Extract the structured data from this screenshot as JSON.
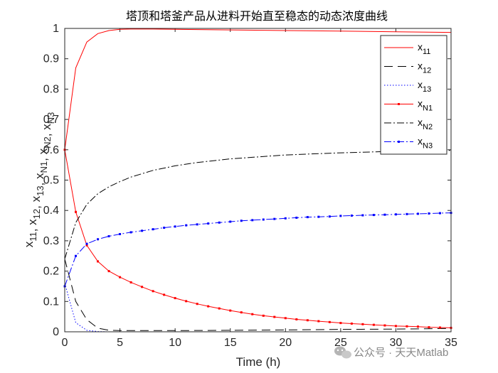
{
  "chart_data": {
    "type": "line",
    "title": "塔顶和塔釜产品从进料开始直至稳态的动态浓度曲线",
    "xlabel": "Time (h)",
    "ylabel": "x11, x12, x13, xN1, xN2, xN3",
    "xlim": [
      0,
      35
    ],
    "ylim": [
      0,
      1
    ],
    "x_ticks": [
      "0",
      "5",
      "10",
      "15",
      "20",
      "25",
      "30",
      "35"
    ],
    "y_ticks": [
      "0",
      "0.1",
      "0.2",
      "0.3",
      "0.4",
      "0.5",
      "0.6",
      "0.7",
      "0.8",
      "0.9",
      "1"
    ],
    "legend_position": "top-right",
    "series": [
      {
        "name": "x11",
        "main": "x",
        "sub": "11",
        "color": "#ff0000",
        "dash": "",
        "marker": "none",
        "x": [
          0,
          1,
          2,
          3,
          4,
          5,
          6,
          8,
          10,
          15,
          20,
          25,
          30,
          35
        ],
        "y": [
          0.6,
          0.87,
          0.955,
          0.983,
          0.993,
          0.997,
          0.998,
          0.998,
          0.997,
          0.995,
          0.993,
          0.991,
          0.989,
          0.987
        ]
      },
      {
        "name": "x12",
        "main": "x",
        "sub": "12",
        "color": "#000000",
        "dash": "12,7",
        "marker": "none",
        "x": [
          0,
          1,
          2,
          3,
          4,
          5,
          7,
          10,
          15,
          20,
          25,
          30,
          35
        ],
        "y": [
          0.24,
          0.1,
          0.04,
          0.012,
          0.005,
          0.004,
          0.004,
          0.004,
          0.005,
          0.006,
          0.008,
          0.009,
          0.011
        ]
      },
      {
        "name": "x13",
        "main": "x",
        "sub": "13",
        "color": "#0000ff",
        "dash": "1.5,2.5",
        "marker": "none",
        "x": [
          0,
          1,
          2,
          3,
          4,
          6,
          10,
          20,
          35
        ],
        "y": [
          0.16,
          0.03,
          0.005,
          0.001,
          0.0,
          0.0,
          0.0,
          0.0,
          0.0
        ]
      },
      {
        "name": "xN1",
        "main": "x",
        "sub": "N1",
        "color": "#ff0000",
        "dash": "",
        "marker": "square",
        "x": [
          0,
          1,
          2,
          3,
          4,
          5,
          6,
          7,
          8,
          9,
          10,
          11,
          12,
          13,
          14,
          15,
          16,
          17,
          18,
          19,
          20,
          21,
          22,
          23,
          24,
          25,
          26,
          27,
          28,
          29,
          30,
          31,
          32,
          33,
          34,
          35
        ],
        "y": [
          0.6,
          0.395,
          0.285,
          0.232,
          0.2,
          0.18,
          0.163,
          0.148,
          0.134,
          0.122,
          0.111,
          0.101,
          0.092,
          0.084,
          0.077,
          0.07,
          0.064,
          0.058,
          0.053,
          0.049,
          0.045,
          0.041,
          0.038,
          0.035,
          0.032,
          0.029,
          0.027,
          0.025,
          0.023,
          0.021,
          0.019,
          0.018,
          0.017,
          0.015,
          0.014,
          0.013
        ]
      },
      {
        "name": "xN2",
        "main": "x",
        "sub": "N2",
        "color": "#000000",
        "dash": "10,3,2,3",
        "marker": "none",
        "x": [
          0,
          1,
          2,
          3,
          4,
          5,
          6,
          8,
          10,
          12,
          15,
          20,
          25,
          30,
          35
        ],
        "y": [
          0.24,
          0.36,
          0.42,
          0.455,
          0.478,
          0.495,
          0.51,
          0.532,
          0.547,
          0.558,
          0.57,
          0.583,
          0.59,
          0.595,
          0.598
        ]
      },
      {
        "name": "xN3",
        "main": "x",
        "sub": "N3",
        "color": "#0000ff",
        "dash": "10,3,2,3",
        "marker": "square",
        "x": [
          0,
          1,
          2,
          3,
          4,
          5,
          6,
          7,
          8,
          9,
          10,
          11,
          12,
          13,
          14,
          15,
          16,
          17,
          18,
          19,
          20,
          21,
          22,
          23,
          24,
          25,
          26,
          27,
          28,
          29,
          30,
          31,
          32,
          33,
          34,
          35
        ],
        "y": [
          0.15,
          0.25,
          0.29,
          0.305,
          0.315,
          0.322,
          0.328,
          0.333,
          0.338,
          0.343,
          0.347,
          0.351,
          0.354,
          0.357,
          0.36,
          0.363,
          0.366,
          0.368,
          0.37,
          0.372,
          0.374,
          0.376,
          0.378,
          0.379,
          0.38,
          0.382,
          0.383,
          0.384,
          0.385,
          0.386,
          0.387,
          0.388,
          0.389,
          0.39,
          0.391,
          0.392
        ]
      }
    ]
  },
  "watermark": {
    "text": "公众号 · 天天Matlab",
    "icon": "wechat-icon"
  }
}
